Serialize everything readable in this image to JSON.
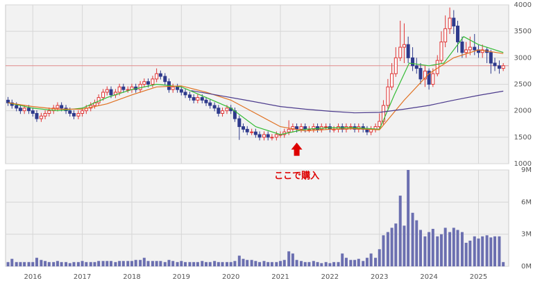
{
  "chart_data": {
    "type": "candlestick",
    "x": [
      2015.5,
      2015.58,
      2015.67,
      2015.75,
      2015.83,
      2015.92,
      2016.0,
      2016.08,
      2016.17,
      2016.25,
      2016.33,
      2016.42,
      2016.5,
      2016.58,
      2016.67,
      2016.75,
      2016.83,
      2016.92,
      2017.0,
      2017.08,
      2017.17,
      2017.25,
      2017.33,
      2017.42,
      2017.5,
      2017.58,
      2017.67,
      2017.75,
      2017.83,
      2017.92,
      2018.0,
      2018.08,
      2018.17,
      2018.25,
      2018.33,
      2018.42,
      2018.5,
      2018.58,
      2018.67,
      2018.75,
      2018.83,
      2018.92,
      2019.0,
      2019.08,
      2019.17,
      2019.25,
      2019.33,
      2019.42,
      2019.5,
      2019.58,
      2019.67,
      2019.75,
      2019.83,
      2019.92,
      2020.0,
      2020.08,
      2020.17,
      2020.25,
      2020.33,
      2020.42,
      2020.5,
      2020.58,
      2020.67,
      2020.75,
      2020.83,
      2020.92,
      2021.0,
      2021.08,
      2021.17,
      2021.25,
      2021.33,
      2021.42,
      2021.5,
      2021.58,
      2021.67,
      2021.75,
      2021.83,
      2021.92,
      2022.0,
      2022.08,
      2022.17,
      2022.25,
      2022.33,
      2022.42,
      2022.5,
      2022.58,
      2022.67,
      2022.75,
      2022.83,
      2022.92,
      2023.0,
      2023.08,
      2023.17,
      2023.25,
      2023.33,
      2023.42,
      2023.5,
      2023.58,
      2023.67,
      2023.75,
      2023.83,
      2023.92,
      2024.0,
      2024.08,
      2024.17,
      2024.25,
      2024.33,
      2024.42,
      2024.5,
      2024.58,
      2024.67,
      2024.75,
      2024.83,
      2024.92,
      2025.0,
      2025.08,
      2025.17,
      2025.25,
      2025.33,
      2025.42,
      2025.5
    ],
    "open": [
      2200,
      2150,
      2100,
      2050,
      2000,
      2050,
      2000,
      1950,
      1850,
      1900,
      1950,
      2000,
      2050,
      2100,
      2050,
      2000,
      1950,
      1900,
      1950,
      2000,
      2050,
      2100,
      2150,
      2250,
      2350,
      2400,
      2300,
      2350,
      2450,
      2400,
      2400,
      2450,
      2400,
      2500,
      2550,
      2500,
      2600,
      2700,
      2650,
      2550,
      2400,
      2450,
      2400,
      2350,
      2300,
      2250,
      2200,
      2250,
      2200,
      2150,
      2100,
      2050,
      1950,
      2000,
      2050,
      2000,
      1850,
      1700,
      1650,
      1600,
      1600,
      1550,
      1500,
      1550,
      1500,
      1500,
      1550,
      1550,
      1600,
      1650,
      1700,
      1650,
      1700,
      1650,
      1650,
      1700,
      1650,
      1700,
      1700,
      1650,
      1650,
      1700,
      1650,
      1700,
      1700,
      1650,
      1700,
      1650,
      1600,
      1650,
      1700,
      1800,
      2100,
      2450,
      2700,
      3000,
      3200,
      3250,
      3000,
      2850,
      2800,
      2600,
      2750,
      2500,
      2700,
      2950,
      3300,
      3550,
      3750,
      3600,
      3300,
      3100,
      3150,
      3200,
      3150,
      3100,
      3150,
      3100,
      2900,
      2850,
      2800
    ],
    "high": [
      2260,
      2210,
      2160,
      2110,
      2110,
      2110,
      2060,
      2010,
      1960,
      2010,
      2060,
      2110,
      2160,
      2160,
      2110,
      2060,
      2010,
      2010,
      2060,
      2110,
      2160,
      2210,
      2310,
      2410,
      2460,
      2460,
      2410,
      2510,
      2510,
      2460,
      2510,
      2510,
      2560,
      2610,
      2610,
      2660,
      2800,
      2760,
      2710,
      2610,
      2510,
      2510,
      2460,
      2410,
      2360,
      2310,
      2310,
      2310,
      2260,
      2210,
      2160,
      2110,
      2060,
      2110,
      2110,
      2060,
      1910,
      1760,
      1710,
      1660,
      1660,
      1610,
      1610,
      1610,
      1560,
      1610,
      1610,
      1660,
      1820,
      1760,
      1760,
      1760,
      1760,
      1710,
      1760,
      1760,
      1760,
      1760,
      1760,
      1710,
      1760,
      1760,
      1760,
      1760,
      1760,
      1760,
      1760,
      1710,
      1710,
      1760,
      1950,
      2200,
      2600,
      2900,
      3200,
      3700,
      3650,
      3400,
      3200,
      3000,
      2900,
      2850,
      2800,
      2800,
      3050,
      3500,
      3800,
      3950,
      3900,
      3700,
      3400,
      3300,
      3400,
      3450,
      3250,
      3250,
      3200,
      3150,
      3000,
      2950,
      2900
    ],
    "low": [
      2090,
      2040,
      1990,
      1940,
      1940,
      1940,
      1890,
      1790,
      1790,
      1840,
      1890,
      1940,
      1990,
      1990,
      1940,
      1890,
      1840,
      1840,
      1890,
      1940,
      1990,
      2040,
      2090,
      2190,
      2290,
      2240,
      2240,
      2290,
      2340,
      2340,
      2340,
      2340,
      2340,
      2440,
      2440,
      2440,
      2540,
      2590,
      2490,
      2340,
      2340,
      2340,
      2290,
      2240,
      2190,
      2140,
      2140,
      2140,
      2090,
      2040,
      1990,
      1890,
      1890,
      1940,
      1940,
      1790,
      1450,
      1590,
      1540,
      1540,
      1490,
      1440,
      1440,
      1440,
      1440,
      1440,
      1490,
      1490,
      1540,
      1590,
      1590,
      1590,
      1590,
      1590,
      1590,
      1590,
      1590,
      1640,
      1590,
      1590,
      1590,
      1590,
      1590,
      1640,
      1590,
      1590,
      1590,
      1540,
      1540,
      1590,
      1640,
      1740,
      2040,
      2390,
      2640,
      2940,
      2900,
      2900,
      2750,
      2700,
      2500,
      2450,
      2400,
      2450,
      2650,
      2900,
      3200,
      3450,
      3450,
      3100,
      3000,
      3000,
      3050,
      3050,
      3000,
      3000,
      2900,
      2700,
      2750,
      2700,
      2750
    ],
    "close": [
      2150,
      2100,
      2050,
      2000,
      2050,
      2000,
      1950,
      1850,
      1900,
      1950,
      2000,
      2050,
      2100,
      2050,
      2000,
      1950,
      1900,
      1950,
      2000,
      2050,
      2100,
      2150,
      2250,
      2350,
      2400,
      2300,
      2350,
      2450,
      2400,
      2400,
      2450,
      2400,
      2500,
      2550,
      2500,
      2600,
      2700,
      2650,
      2550,
      2400,
      2450,
      2400,
      2350,
      2300,
      2250,
      2200,
      2250,
      2200,
      2150,
      2100,
      2050,
      1950,
      2000,
      2050,
      2000,
      1850,
      1700,
      1650,
      1600,
      1600,
      1550,
      1500,
      1550,
      1500,
      1500,
      1550,
      1550,
      1600,
      1650,
      1700,
      1650,
      1700,
      1650,
      1650,
      1700,
      1650,
      1700,
      1700,
      1650,
      1650,
      1700,
      1650,
      1700,
      1700,
      1650,
      1700,
      1650,
      1600,
      1650,
      1700,
      1800,
      2100,
      2450,
      2700,
      3000,
      3200,
      3250,
      3000,
      2850,
      2800,
      2600,
      2750,
      2500,
      2700,
      2950,
      3300,
      3550,
      3750,
      3600,
      3300,
      3100,
      3150,
      3200,
      3150,
      3100,
      3150,
      3100,
      2900,
      2850,
      2800,
      2850
    ],
    "up_color": "#e03333",
    "down_color": "#2e3a8c",
    "xlim": [
      2015.45,
      2025.61
    ],
    "xticks": [
      2016,
      2017,
      2018,
      2019,
      2020,
      2021,
      2022,
      2023,
      2024,
      2025
    ],
    "ylim": [
      1000,
      4000
    ],
    "yticks": [
      1000,
      1500,
      2000,
      2500,
      3000,
      3500,
      4000
    ],
    "grid": true,
    "lines": [
      {
        "color": "#33bb33",
        "x": [
          2015.5,
          2016,
          2016.5,
          2017,
          2017.5,
          2018,
          2018.5,
          2019,
          2019.5,
          2020,
          2020.5,
          2021,
          2021.5,
          2022,
          2022.5,
          2023,
          2023.3,
          2023.6,
          2024,
          2024.3,
          2024.7,
          2025,
          2025.5
        ],
        "values": [
          2150,
          2050,
          2000,
          2050,
          2250,
          2400,
          2500,
          2450,
          2250,
          2050,
          1700,
          1550,
          1650,
          1680,
          1680,
          1650,
          2300,
          2900,
          2850,
          2900,
          3400,
          3250,
          3100
        ]
      },
      {
        "color": "#e07020",
        "x": [
          2015.5,
          2016,
          2016.5,
          2017,
          2017.5,
          2018,
          2018.5,
          2019,
          2019.5,
          2020,
          2020.5,
          2021,
          2021.5,
          2022,
          2022.5,
          2023,
          2023.5,
          2024,
          2024.5,
          2025,
          2025.5
        ],
        "values": [
          2150,
          2080,
          2030,
          2030,
          2130,
          2300,
          2450,
          2470,
          2350,
          2200,
          1950,
          1700,
          1620,
          1650,
          1660,
          1640,
          2200,
          2700,
          3000,
          3150,
          3080
        ]
      },
      {
        "color": "#4b3a8c",
        "x": [
          2019.2,
          2019.7,
          2020.3,
          2021,
          2021.5,
          2022,
          2022.5,
          2023,
          2023.5,
          2024,
          2024.5,
          2025,
          2025.5
        ],
        "values": [
          2380,
          2300,
          2200,
          2080,
          2030,
          1990,
          1960,
          1970,
          2030,
          2100,
          2200,
          2290,
          2370
        ]
      }
    ],
    "hline": {
      "value": 2850,
      "color": "#e08a8a"
    },
    "annotation": {
      "text": "ここで購入",
      "x": 2021.33,
      "y": 1450,
      "color": "#dd0000"
    },
    "volume": {
      "color": "#6b6fb0",
      "values": [
        0.4,
        0.7,
        0.4,
        0.4,
        0.4,
        0.4,
        0.4,
        0.8,
        0.6,
        0.5,
        0.4,
        0.4,
        0.5,
        0.4,
        0.4,
        0.3,
        0.4,
        0.4,
        0.5,
        0.4,
        0.4,
        0.4,
        0.5,
        0.5,
        0.5,
        0.5,
        0.4,
        0.5,
        0.5,
        0.5,
        0.5,
        0.6,
        0.6,
        0.8,
        0.5,
        0.5,
        0.5,
        0.5,
        0.4,
        0.6,
        0.5,
        0.4,
        0.5,
        0.4,
        0.4,
        0.4,
        0.4,
        0.5,
        0.4,
        0.4,
        0.5,
        0.4,
        0.4,
        0.4,
        0.4,
        0.5,
        1.0,
        0.7,
        0.6,
        0.6,
        0.5,
        0.4,
        0.5,
        0.4,
        0.4,
        0.4,
        0.5,
        0.6,
        1.4,
        1.2,
        0.6,
        0.5,
        0.4,
        0.4,
        0.5,
        0.4,
        0.3,
        0.4,
        0.3,
        0.4,
        0.4,
        1.2,
        0.8,
        0.6,
        0.6,
        0.7,
        0.5,
        0.8,
        1.2,
        0.8,
        1.6,
        2.9,
        3.2,
        3.6,
        4.0,
        6.6,
        3.8,
        9.0,
        5.0,
        4.3,
        3.4,
        2.8,
        3.2,
        3.5,
        2.8,
        3.0,
        3.6,
        3.2,
        3.6,
        3.4,
        3.2,
        2.2,
        2.4,
        2.8,
        2.6,
        2.8,
        2.9,
        2.7,
        2.8,
        2.8,
        0.4
      ],
      "ylim": [
        0,
        9
      ],
      "yticks": [
        {
          "value": 0,
          "label": "0M"
        },
        {
          "value": 3,
          "label": "3M"
        },
        {
          "value": 6,
          "label": "6M"
        },
        {
          "value": 9,
          "label": "9M"
        }
      ]
    }
  }
}
